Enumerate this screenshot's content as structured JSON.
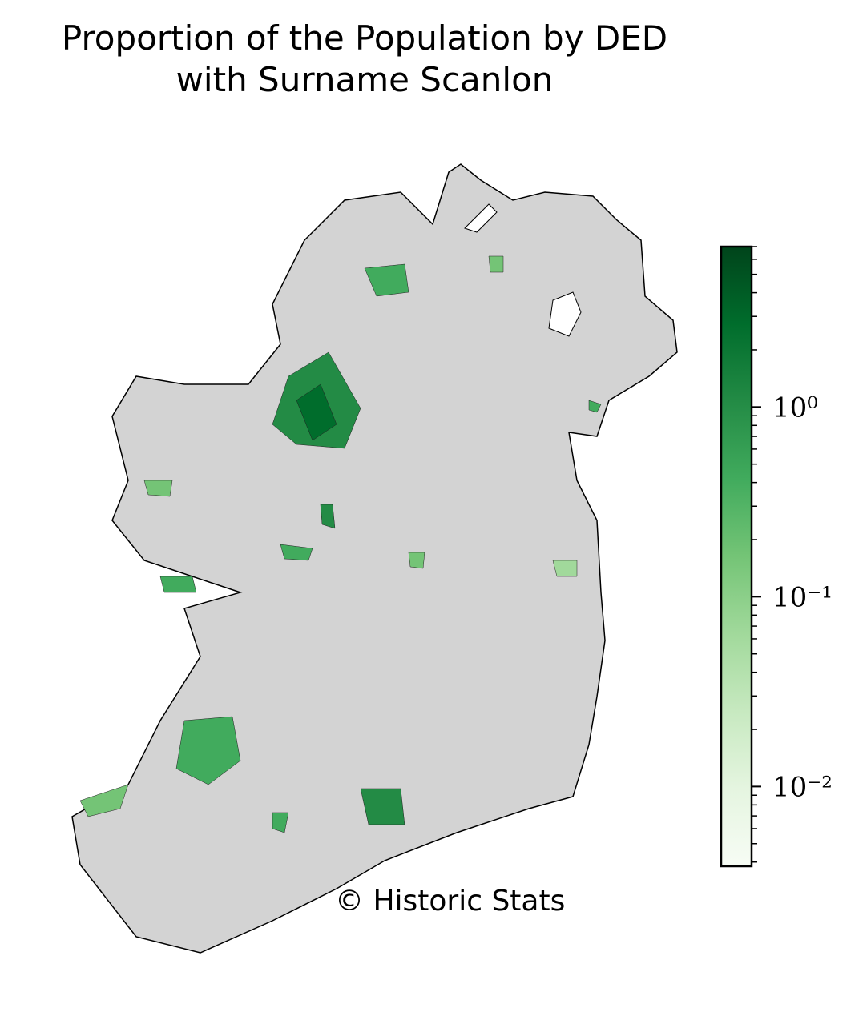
{
  "chart_data": {
    "type": "choropleth",
    "title": [
      "Proportion of the Population by DED",
      "with Surname Scanlon"
    ],
    "credit": "© Historic Stats",
    "colorbar": {
      "scale": "log",
      "lim": [
        0.0038,
        7
      ],
      "ticks": [
        {
          "value": 1,
          "label": "10⁰"
        },
        {
          "value": 0.1,
          "label": "10⁻¹"
        },
        {
          "value": 0.01,
          "label": "10⁻²"
        }
      ],
      "colors": [
        "#f7fcf5",
        "#e5f5e0",
        "#c7e9c0",
        "#a1d99b",
        "#74c476",
        "#41ab5d",
        "#238b45",
        "#006d2c",
        "#00441b"
      ]
    },
    "no_data_color": "#d3d3d3"
  }
}
